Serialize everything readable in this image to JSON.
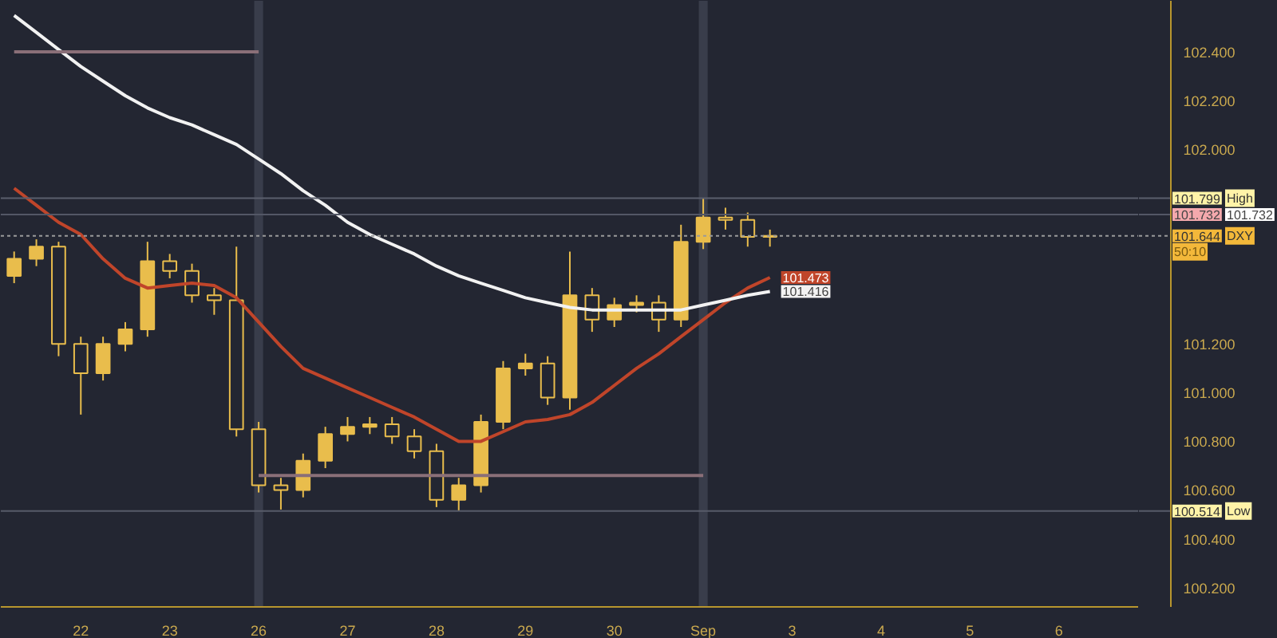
{
  "chart_data": {
    "type": "candlestick",
    "categories": [
      null,
      null,
      null,
      "22",
      null,
      null,
      null,
      "23",
      null,
      null,
      null,
      "26",
      null,
      null,
      null,
      "27",
      null,
      null,
      null,
      "28",
      null,
      null,
      null,
      "29",
      null,
      null,
      null,
      "30",
      null,
      null,
      null,
      "Sep",
      null,
      null,
      null,
      "3",
      null,
      null,
      null,
      "4",
      null,
      null,
      null,
      "5",
      null,
      null,
      null,
      "6",
      null,
      null,
      null
    ],
    "ylim": [
      100.12,
      102.61
    ],
    "yticks": [
      {
        "value": 100.2,
        "label": "100.200"
      },
      {
        "value": 100.4,
        "label": "100.400"
      },
      {
        "value": 100.6,
        "label": "100.600"
      },
      {
        "value": 100.8,
        "label": "100.800"
      },
      {
        "value": 101.0,
        "label": "101.000"
      },
      {
        "value": 101.2,
        "label": "101.200"
      },
      {
        "value": 102.0,
        "label": "102.000"
      },
      {
        "value": 102.2,
        "label": "102.200"
      },
      {
        "value": 102.4,
        "label": "102.400"
      }
    ],
    "series": [
      {
        "type": "line",
        "color": "#c0452a",
        "value_labels": [
          null,
          null,
          null,
          null,
          null,
          null,
          null,
          null,
          null,
          null,
          null,
          null,
          null,
          null,
          null,
          null,
          null,
          null,
          null,
          null,
          null,
          null,
          null,
          null,
          null,
          null,
          null,
          null,
          null,
          null,
          null,
          null,
          null,
          null,
          "101.473",
          null,
          null,
          null,
          null,
          null,
          null,
          null,
          null,
          null,
          null,
          null,
          null,
          null,
          null,
          null,
          null
        ],
        "values": [
          101.84,
          101.77,
          101.7,
          101.65,
          101.55,
          101.47,
          101.43,
          101.44,
          101.45,
          101.44,
          101.39,
          101.29,
          101.19,
          101.1,
          101.06,
          101.02,
          100.98,
          100.94,
          100.9,
          100.85,
          100.8,
          100.8,
          100.84,
          100.88,
          100.89,
          100.91,
          100.96,
          101.03,
          101.1,
          101.16,
          101.23,
          101.3,
          101.37,
          101.43,
          101.473,
          null,
          null,
          null,
          null,
          null,
          null,
          null,
          null,
          null,
          null,
          null,
          null,
          null,
          null,
          null,
          null
        ]
      },
      {
        "type": "line",
        "color": "#f2f2f2",
        "value_labels": [
          null,
          null,
          null,
          null,
          null,
          null,
          null,
          null,
          null,
          null,
          null,
          null,
          null,
          null,
          null,
          null,
          null,
          null,
          null,
          null,
          null,
          null,
          null,
          null,
          null,
          null,
          null,
          null,
          null,
          null,
          null,
          null,
          null,
          null,
          "101.416",
          null,
          null,
          null,
          null,
          null,
          null,
          null,
          null,
          null,
          null,
          null,
          null,
          null,
          null,
          null,
          null
        ],
        "values": [
          102.55,
          102.48,
          102.41,
          102.34,
          102.28,
          102.22,
          102.17,
          102.13,
          102.1,
          102.06,
          102.02,
          101.96,
          101.9,
          101.83,
          101.77,
          101.7,
          101.65,
          101.61,
          101.57,
          101.52,
          101.48,
          101.45,
          101.42,
          101.39,
          101.37,
          101.35,
          101.34,
          101.34,
          101.34,
          101.34,
          101.34,
          101.36,
          101.38,
          101.4,
          101.416,
          null,
          null,
          null,
          null,
          null,
          null,
          null,
          null,
          null,
          null,
          null,
          null,
          null,
          null,
          null,
          null
        ]
      },
      {
        "type": "line",
        "color": "#8a6f78",
        "values": [
          102.4,
          102.4,
          102.4,
          102.4,
          102.4,
          102.4,
          102.4,
          102.4,
          102.4,
          102.4,
          102.4,
          102.4,
          null,
          null,
          null,
          null,
          null,
          null,
          null,
          null,
          null,
          null,
          null,
          null,
          null,
          null,
          null,
          null,
          null,
          null,
          null,
          null,
          null,
          null,
          null,
          null,
          null,
          null,
          null,
          null,
          null,
          null,
          null,
          null,
          null,
          null,
          null,
          null,
          null,
          null,
          null
        ]
      },
      {
        "type": "line",
        "color": "#8a6f78",
        "values": [
          null,
          null,
          null,
          null,
          null,
          null,
          null,
          null,
          null,
          null,
          null,
          100.66,
          100.66,
          100.66,
          100.66,
          100.66,
          100.66,
          100.66,
          100.66,
          100.66,
          100.66,
          100.66,
          100.66,
          100.66,
          100.66,
          100.66,
          100.66,
          100.66,
          100.66,
          100.66,
          100.66,
          100.66,
          null,
          null,
          null,
          null,
          null,
          null,
          null,
          null,
          null,
          null,
          null,
          null,
          null,
          null,
          null,
          null,
          null,
          null,
          null
        ]
      },
      {
        "color": "#e9bd4c",
        "ohlc": [
          [
            101.48,
            101.58,
            101.45,
            101.55
          ],
          [
            101.55,
            101.63,
            101.52,
            101.6
          ],
          [
            101.6,
            101.62,
            101.15,
            101.2
          ],
          [
            101.2,
            101.23,
            100.91,
            101.08
          ],
          [
            101.08,
            101.23,
            101.05,
            101.2
          ],
          [
            101.2,
            101.29,
            101.17,
            101.26
          ],
          [
            101.26,
            101.62,
            101.23,
            101.54
          ],
          [
            101.54,
            101.57,
            101.47,
            101.5
          ],
          [
            101.5,
            101.53,
            101.37,
            101.4
          ],
          [
            101.4,
            101.43,
            101.32,
            101.38
          ],
          [
            101.38,
            101.6,
            100.82,
            100.85
          ],
          [
            100.85,
            100.88,
            100.59,
            100.62
          ],
          [
            100.62,
            100.65,
            100.52,
            100.6
          ],
          [
            100.6,
            100.75,
            100.57,
            100.72
          ],
          [
            100.72,
            100.86,
            100.69,
            100.83
          ],
          [
            100.83,
            100.9,
            100.8,
            100.86
          ],
          [
            100.86,
            100.9,
            100.83,
            100.87
          ],
          [
            100.87,
            100.9,
            100.79,
            100.82
          ],
          [
            100.82,
            100.85,
            100.73,
            100.76
          ],
          [
            100.76,
            100.79,
            100.53,
            100.56
          ],
          [
            100.56,
            100.65,
            100.514,
            100.62
          ],
          [
            100.62,
            100.91,
            100.59,
            100.88
          ],
          [
            100.88,
            101.13,
            100.85,
            101.1
          ],
          [
            101.1,
            101.16,
            101.07,
            101.12
          ],
          [
            101.12,
            101.15,
            100.95,
            100.98
          ],
          [
            100.98,
            101.58,
            100.93,
            101.4
          ],
          [
            101.4,
            101.43,
            101.25,
            101.3
          ],
          [
            101.3,
            101.39,
            101.27,
            101.36
          ],
          [
            101.36,
            101.4,
            101.33,
            101.37
          ],
          [
            101.37,
            101.4,
            101.25,
            101.3
          ],
          [
            101.3,
            101.69,
            101.27,
            101.62
          ],
          [
            101.62,
            101.799,
            101.59,
            101.72
          ],
          [
            101.72,
            101.76,
            101.67,
            101.71
          ],
          [
            101.71,
            101.74,
            101.6,
            101.64
          ],
          [
            101.64,
            101.67,
            101.6,
            101.644
          ],
          null,
          null,
          null,
          null,
          null,
          null,
          null,
          null,
          null,
          null,
          null,
          null,
          null,
          null,
          null,
          null
        ]
      }
    ],
    "ref_lines": [
      {
        "axis": "y",
        "value": 101.799,
        "label": "101.799",
        "color": "#5a5e6c",
        "line_style": "solid"
      },
      {
        "axis": "y",
        "value": 101.732,
        "label": "101.732",
        "color": "#535766",
        "line_style": "solid"
      },
      {
        "axis": "y",
        "value": 101.644,
        "label": "101.644",
        "color": "#9a9a9a",
        "line_style": "dotted"
      },
      {
        "axis": "y",
        "value": 100.514,
        "label": "100.514",
        "color": "#575b69",
        "line_style": "solid"
      }
    ],
    "bands": [
      {
        "axis": "x",
        "from": "26",
        "to": "26",
        "color": "#393d4b"
      },
      {
        "axis": "x",
        "from": "Sep",
        "to": "Sep",
        "color": "#393d4b"
      }
    ],
    "annotations": [
      "High",
      "101.732",
      "DXY",
      "50:10",
      "Low"
    ]
  }
}
